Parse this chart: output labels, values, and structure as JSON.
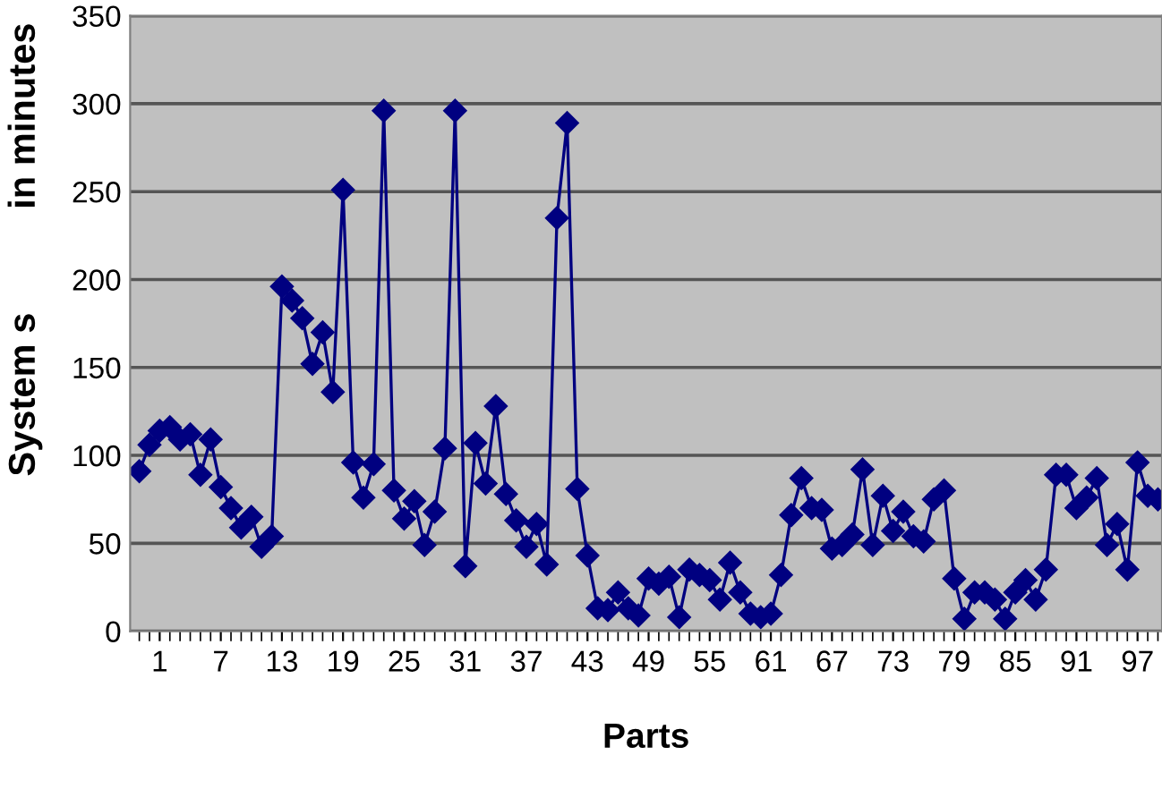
{
  "chart_data": {
    "type": "line",
    "xlabel": "Parts",
    "ylabel": "System s          in minutes",
    "categories": [
      null,
      null,
      "1",
      null,
      null,
      null,
      null,
      null,
      "7",
      null,
      null,
      null,
      null,
      null,
      "13",
      null,
      null,
      null,
      null,
      null,
      "19",
      null,
      null,
      null,
      null,
      null,
      "25",
      null,
      null,
      null,
      null,
      null,
      "31",
      null,
      null,
      null,
      null,
      null,
      "37",
      null,
      null,
      null,
      null,
      null,
      "43",
      null,
      null,
      null,
      null,
      null,
      "49",
      null,
      null,
      null,
      null,
      null,
      "55",
      null,
      null,
      null,
      null,
      null,
      "61",
      null,
      null,
      null,
      null,
      null,
      "67",
      null,
      null,
      null,
      null,
      null,
      "73",
      null,
      null,
      null,
      null,
      null,
      "79",
      null,
      null,
      null,
      null,
      null,
      "85",
      null,
      null,
      null,
      null,
      null,
      "91",
      null,
      null,
      null,
      null,
      null,
      "97",
      null,
      null
    ],
    "series": [
      {
        "color": "#000080",
        "values": [
          91,
          106,
          114,
          116,
          109,
          112,
          89,
          109,
          82,
          70,
          59,
          65,
          48,
          54,
          196,
          188,
          178,
          152,
          170,
          136,
          251,
          96,
          76,
          95,
          296,
          80,
          64,
          74,
          49,
          68,
          104,
          296,
          37,
          107,
          84,
          128,
          78,
          63,
          48,
          61,
          38,
          235,
          289,
          81,
          43,
          13,
          12,
          22,
          13,
          9,
          30,
          27,
          31,
          8,
          35,
          32,
          29,
          18,
          39,
          22,
          10,
          8,
          10,
          32,
          66,
          87,
          70,
          69,
          47,
          49,
          55,
          92,
          49,
          77,
          57,
          68,
          54,
          51,
          75,
          80,
          30,
          7,
          22,
          22,
          18,
          7,
          22,
          29,
          18,
          35,
          89,
          89,
          70,
          76,
          87,
          49,
          61,
          35,
          96,
          77,
          75
        ]
      }
    ],
    "ylim": [
      0,
      350
    ],
    "yticks": [
      0,
      50,
      100,
      150,
      200,
      250,
      300,
      350
    ],
    "grid": "y",
    "marker": "diamond",
    "line_style": "solid"
  }
}
